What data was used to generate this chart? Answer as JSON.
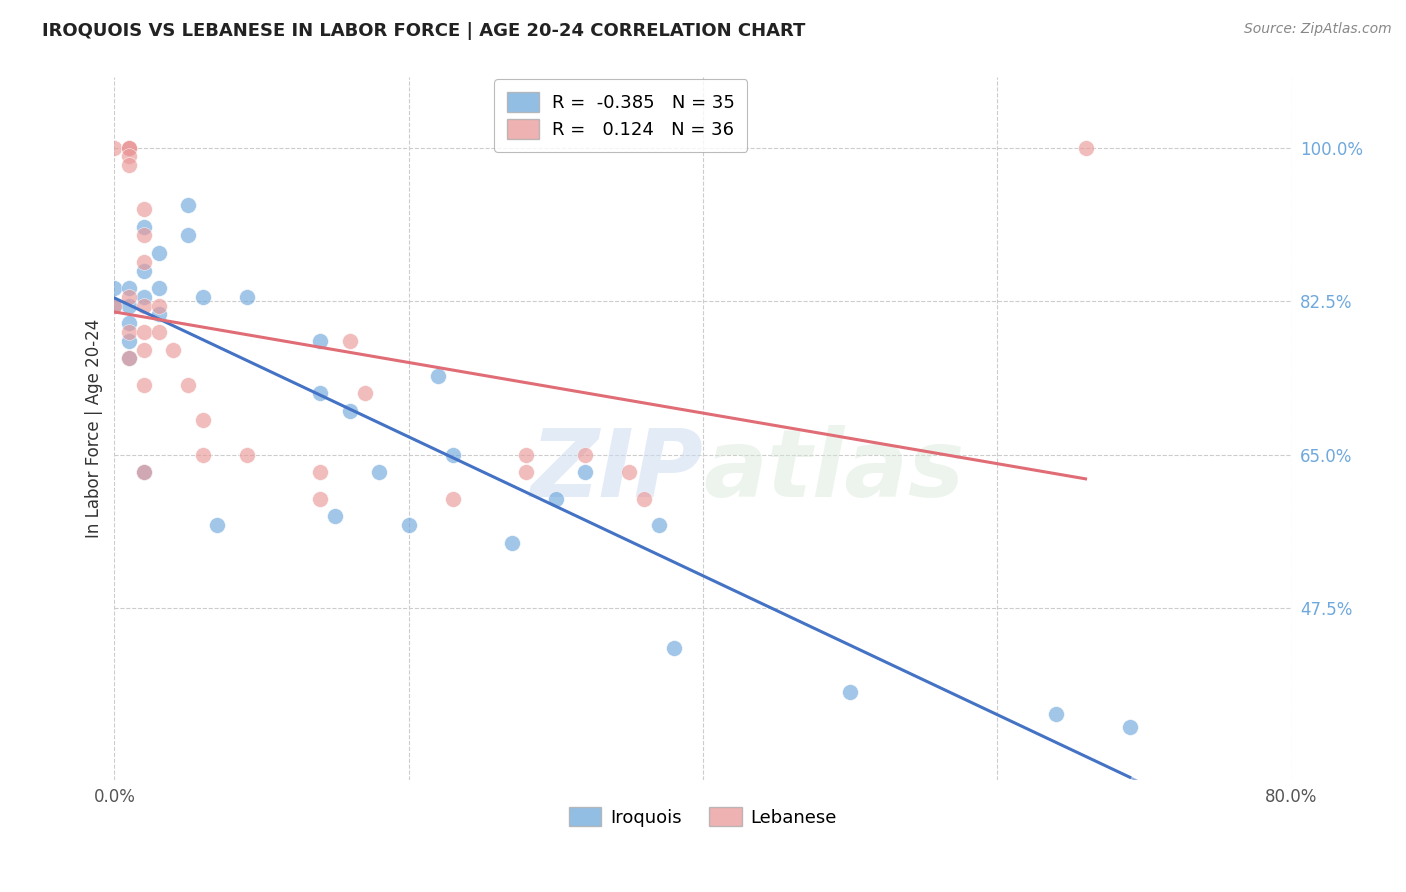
{
  "title": "IROQUOIS VS LEBANESE IN LABOR FORCE | AGE 20-24 CORRELATION CHART",
  "source": "Source: ZipAtlas.com",
  "ylabel": "In Labor Force | Age 20-24",
  "xlim": [
    0.0,
    0.8
  ],
  "ylim": [
    0.28,
    1.08
  ],
  "xticks": [
    0.0,
    0.2,
    0.4,
    0.6,
    0.8
  ],
  "xticklabels": [
    "0.0%",
    "",
    "",
    "",
    "80.0%"
  ],
  "yticks": [
    0.475,
    0.65,
    0.825,
    1.0
  ],
  "yticklabels": [
    "47.5%",
    "65.0%",
    "82.5%",
    "100.0%"
  ],
  "iroquois_color": "#6fa8dc",
  "lebanese_color": "#ea9999",
  "iroquois_line_color": "#4472c4",
  "lebanese_line_color": "#e06c75",
  "iroquois_R": -0.385,
  "iroquois_N": 35,
  "lebanese_R": 0.124,
  "lebanese_N": 36,
  "iroquois_x": [
    0.0,
    0.0,
    0.01,
    0.01,
    0.01,
    0.01,
    0.01,
    0.02,
    0.02,
    0.02,
    0.02,
    0.03,
    0.03,
    0.03,
    0.05,
    0.05,
    0.06,
    0.07,
    0.09,
    0.14,
    0.14,
    0.15,
    0.16,
    0.18,
    0.2,
    0.22,
    0.23,
    0.27,
    0.3,
    0.32,
    0.37,
    0.38,
    0.5,
    0.64,
    0.69
  ],
  "iroquois_y": [
    0.82,
    0.84,
    0.84,
    0.82,
    0.8,
    0.78,
    0.76,
    0.91,
    0.86,
    0.83,
    0.63,
    0.88,
    0.84,
    0.81,
    0.935,
    0.9,
    0.83,
    0.57,
    0.83,
    0.78,
    0.72,
    0.58,
    0.7,
    0.63,
    0.57,
    0.74,
    0.65,
    0.55,
    0.6,
    0.63,
    0.57,
    0.43,
    0.38,
    0.355,
    0.34
  ],
  "lebanese_x": [
    0.0,
    0.0,
    0.01,
    0.01,
    0.01,
    0.01,
    0.01,
    0.01,
    0.01,
    0.01,
    0.02,
    0.02,
    0.02,
    0.02,
    0.02,
    0.02,
    0.02,
    0.02,
    0.03,
    0.03,
    0.04,
    0.05,
    0.06,
    0.06,
    0.09,
    0.14,
    0.14,
    0.16,
    0.17,
    0.23,
    0.28,
    0.28,
    0.32,
    0.35,
    0.36,
    0.66
  ],
  "lebanese_y": [
    1.0,
    0.82,
    1.0,
    1.0,
    1.0,
    0.99,
    0.98,
    0.83,
    0.79,
    0.76,
    0.93,
    0.9,
    0.87,
    0.82,
    0.79,
    0.77,
    0.73,
    0.63,
    0.82,
    0.79,
    0.77,
    0.73,
    0.69,
    0.65,
    0.65,
    0.63,
    0.6,
    0.78,
    0.72,
    0.6,
    0.65,
    0.63,
    0.65,
    0.63,
    0.6,
    1.0
  ],
  "watermark_zip": "ZIP",
  "watermark_atlas": "atlas",
  "background_color": "#ffffff",
  "grid_color": "#cccccc",
  "ytick_color": "#6fa8dc",
  "xtick_color": "#555555",
  "title_fontsize": 13,
  "source_fontsize": 10,
  "tick_fontsize": 12,
  "ylabel_fontsize": 12
}
